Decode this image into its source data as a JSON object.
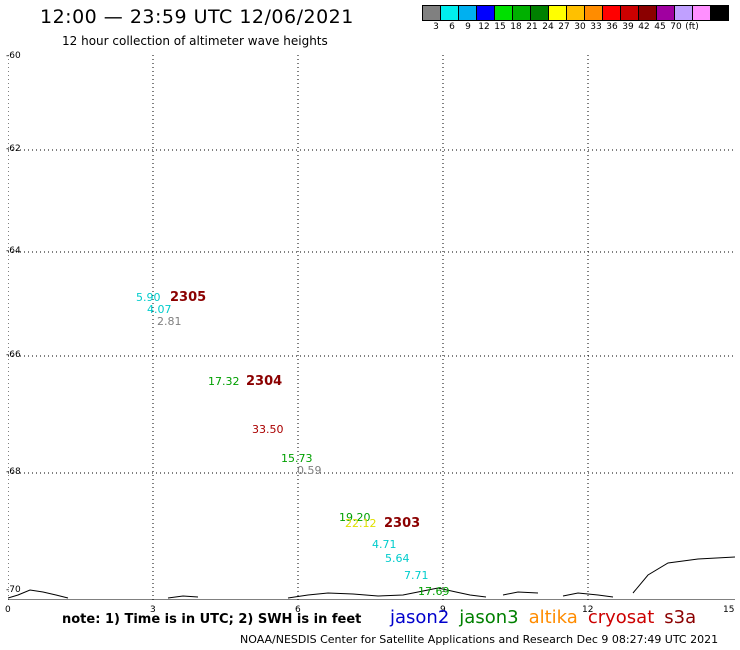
{
  "header": {
    "title": "12:00 — 23:59 UTC 12/06/2021",
    "subtitle": "12 hour collection of altimeter wave heights"
  },
  "scale": {
    "colors": [
      "#808080",
      "#00eeee",
      "#00b0f0",
      "#0000ff",
      "#00e000",
      "#00b000",
      "#008000",
      "#ffff00",
      "#ffc000",
      "#ff8c00",
      "#ff0000",
      "#cc0000",
      "#8b0000",
      "#a000a0",
      "#c0a0ff",
      "#ff90ff",
      "#000000"
    ],
    "labels": [
      "3",
      "6",
      "9",
      "12",
      "15",
      "18",
      "21",
      "24",
      "27",
      "30",
      "33",
      "36",
      "39",
      "42",
      "45",
      "70",
      "(ft)"
    ]
  },
  "axes": {
    "lat_labels": [
      "-60",
      "-62",
      "-64",
      "-66",
      "-68",
      "-70"
    ],
    "lon_labels": [
      "0",
      "3",
      "6",
      "9",
      "12",
      "15"
    ]
  },
  "observations": [
    {
      "text": "5.90",
      "color": "#00cccc"
    },
    {
      "text": "4.07",
      "color": "#00cccc"
    },
    {
      "text": "2.81",
      "color": "#808080"
    },
    {
      "text": "17.32",
      "color": "#00a000"
    },
    {
      "text": "33.50",
      "color": "#aa0000"
    },
    {
      "text": "15.73",
      "color": "#00a000"
    },
    {
      "text": "0.59",
      "color": "#808080"
    },
    {
      "text": "19.20",
      "color": "#00a000"
    },
    {
      "text": "22.12",
      "color": "#e0e000"
    },
    {
      "text": "4.71",
      "color": "#00cccc"
    },
    {
      "text": "5.64",
      "color": "#00cccc"
    },
    {
      "text": "7.71",
      "color": "#00cccc"
    },
    {
      "text": "17.69",
      "color": "#00a000"
    }
  ],
  "passes": [
    "2305",
    "2304",
    "2303"
  ],
  "note": "note: 1) Time is in UTC; 2) SWH is in feet",
  "satellites": [
    {
      "name": "jason2",
      "color": "#0000cc"
    },
    {
      "name": "jason3",
      "color": "#008000"
    },
    {
      "name": "altika",
      "color": "#ff8c00"
    },
    {
      "name": "cryosat",
      "color": "#cc0000"
    },
    {
      "name": "s3a",
      "color": "#8b0000"
    }
  ],
  "footer": "NOAA/NESDIS Center for Satellite Applications and Research    Dec  9 08:27:49 UTC 2021"
}
